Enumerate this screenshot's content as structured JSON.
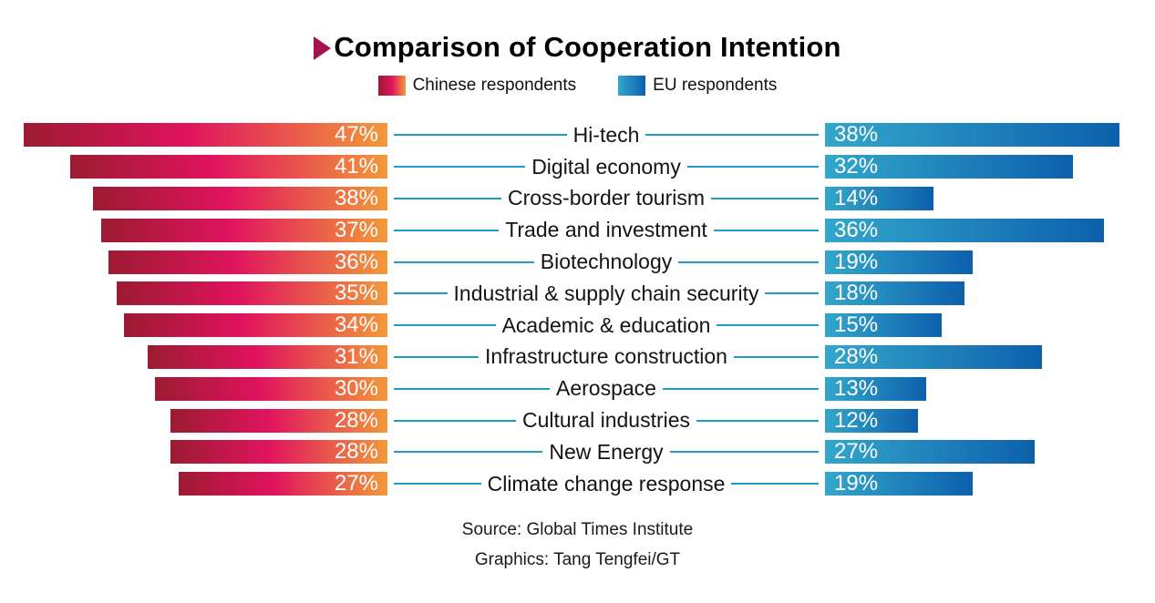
{
  "title": "Comparison of Cooperation Intention",
  "legend": {
    "items": [
      {
        "label": "Chinese respondents",
        "color_start": "#9c1b31",
        "color_mid": "#e0135e",
        "color_end": "#f2993a"
      },
      {
        "label": "EU respondents",
        "color_start": "#33a7cb",
        "color_end": "#0d60ac"
      }
    ]
  },
  "chart_data": {
    "type": "bar",
    "title": "Comparison of Cooperation Intention",
    "orientation": "diverging-horizontal",
    "unit": "%",
    "categories": [
      "Hi-tech",
      "Digital economy",
      "Cross-border tourism",
      "Trade and investment",
      "Biotechnology",
      "Industrial & supply chain security",
      "Academic & education",
      "Infrastructure construction",
      "Aerospace",
      "Cultural industries",
      "New Energy",
      "Climate change response"
    ],
    "series": [
      {
        "name": "Chinese respondents",
        "values": [
          47,
          41,
          38,
          37,
          36,
          35,
          34,
          31,
          30,
          28,
          28,
          27
        ]
      },
      {
        "name": "EU respondents",
        "values": [
          38,
          32,
          14,
          36,
          19,
          18,
          15,
          28,
          13,
          12,
          27,
          19
        ]
      }
    ],
    "xlim": [
      0,
      50
    ],
    "legend_position": "top",
    "grid": false,
    "connector_color": "#1e9cc1"
  },
  "footer": {
    "source_line": "Source: Global Times Institute",
    "credit_line": "Graphics: Tang Tengfei/GT"
  },
  "colors": {
    "title_arrow": "#a31352",
    "bar_value_text": "#ffffff",
    "category_text": "#141414",
    "background": "#ffffff"
  }
}
